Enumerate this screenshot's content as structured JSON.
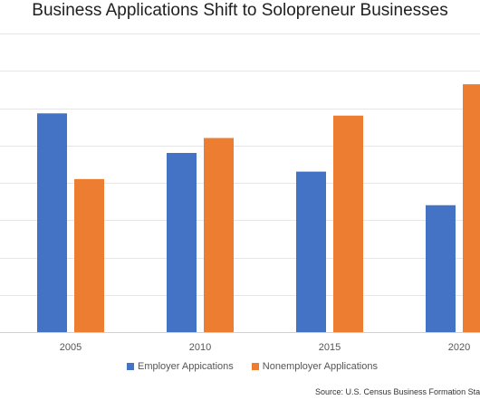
{
  "chart_data": {
    "type": "bar",
    "title": "Business Applications Shift to Solopreneur Businesses",
    "categories": [
      "2005",
      "2010",
      "2015",
      "2020"
    ],
    "series": [
      {
        "name": "Employer Appications",
        "color": "#4472C4",
        "values": [
          2.93,
          2.4,
          2.15,
          1.7
        ]
      },
      {
        "name": "Nonemployer Applications",
        "color": "#ED7D31",
        "values": [
          2.05,
          2.6,
          2.9,
          3.32
        ]
      }
    ],
    "ylim": [
      0,
      4
    ],
    "grid": true,
    "legend_position": "bottom",
    "source": "Source:  U.S. Census Business Formation Statistics"
  }
}
